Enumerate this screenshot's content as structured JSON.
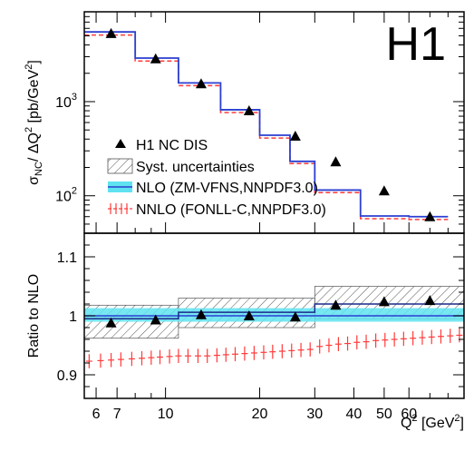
{
  "colors": {
    "nlo_line": "#2b3fd1",
    "nlo_band": "#5fe3f0",
    "nnlo": "#ff3b3b",
    "data": "#000000",
    "hatch": "#555555"
  },
  "brand_label": "H1",
  "chart_data": [
    {
      "panel": "top",
      "type": "line",
      "ylabel_parts": {
        "sigma": "σ",
        "nc": "NC",
        "rest": "/ ΔQ",
        "sq": "2",
        "unit": " [pb/GeV",
        "sq2": "2",
        "close": "]"
      },
      "yscale": "log",
      "xscale": "log",
      "xlim": [
        5.5,
        90
      ],
      "ylim": [
        40,
        9000
      ],
      "y_tick_labels": [
        {
          "value": 100,
          "base": "10",
          "exp": "2"
        },
        {
          "value": 1000,
          "base": "10",
          "exp": "3"
        }
      ],
      "bin_edges": [
        5.5,
        8,
        11,
        15,
        20,
        25,
        30,
        42,
        60,
        80,
        90
      ],
      "series": [
        {
          "name": "H1 NC DIS",
          "kind": "points",
          "x": [
            6.7,
            9.3,
            13.0,
            18.5,
            26.0,
            35.0,
            50.0,
            70.0
          ],
          "y": [
            5300,
            2850,
            1550,
            800,
            430,
            230,
            113,
            60
          ]
        },
        {
          "name": "NLO (ZM-VFNS,NNPDF3.0)",
          "kind": "step",
          "values": [
            5500,
            2900,
            1580,
            820,
            440,
            232,
            115,
            61,
            60
          ]
        },
        {
          "name": "NNLO (FONLL-C,NNPDF3.0)",
          "kind": "step",
          "values": [
            5100,
            2700,
            1480,
            765,
            410,
            220,
            108,
            57,
            56
          ]
        }
      ],
      "legend": [
        {
          "label": "H1 NC DIS",
          "marker": "triangle"
        },
        {
          "label": "Syst. uncertainties",
          "marker": "hatch"
        },
        {
          "label": "NLO (ZM-VFNS,NNPDF3.0)",
          "marker": "band"
        },
        {
          "label": "NNLO (FONLL-C,NNPDF3.0)",
          "marker": "nnlo"
        }
      ],
      "legend_position": "bottom-left"
    },
    {
      "panel": "bottom",
      "type": "line",
      "ylabel": "Ratio to NLO",
      "xlabel_parts": {
        "q": "Q",
        "sq": "2",
        "unit": " [GeV",
        "sq2": "2",
        "close": "]"
      },
      "xscale": "log",
      "xlim": [
        5.5,
        90
      ],
      "ylim": [
        0.86,
        1.14
      ],
      "y_tick_labels": [
        {
          "value": 0.9,
          "label": "0.9"
        },
        {
          "value": 1.0,
          "label": "1"
        },
        {
          "value": 1.1,
          "label": "1.1"
        }
      ],
      "x_tick_labels": [
        {
          "value": 6,
          "label": "6"
        },
        {
          "value": 7,
          "label": "7"
        },
        {
          "value": 10,
          "label": "10"
        },
        {
          "value": 20,
          "label": "20"
        },
        {
          "value": 30,
          "label": "30"
        },
        {
          "value": 40,
          "label": "40"
        },
        {
          "value": 50,
          "label": "50"
        },
        {
          "value": 60,
          "label": "60"
        }
      ],
      "bin_edges": [
        5.5,
        11,
        30,
        90
      ],
      "syst_band": [
        {
          "lo": 0.962,
          "hi": 1.018
        },
        {
          "lo": 0.98,
          "hi": 1.03
        },
        {
          "lo": 0.995,
          "hi": 1.05
        }
      ],
      "nlo_band": {
        "lo": 0.99,
        "hi": 1.013
      },
      "data_ratio": {
        "x": [
          6.7,
          9.3,
          13.0,
          18.5,
          26.0,
          35.0,
          50.0,
          70.0
        ],
        "y": [
          0.988,
          0.993,
          1.002,
          1.0,
          0.998,
          1.018,
          1.024,
          1.026
        ]
      },
      "model_ratio_edges": [
        5.5,
        11,
        30,
        90
      ],
      "model_ratio_values": [
        0.995,
        1.006,
        1.02
      ],
      "nnlo_ratio": {
        "x": [
          5.7,
          6.2,
          6.7,
          7.2,
          7.8,
          8.4,
          9.0,
          9.6,
          10.3,
          11.0,
          11.8,
          12.7,
          13.6,
          14.6,
          15.6,
          16.7,
          17.9,
          19.2,
          20.6,
          22.0,
          23.6,
          25.3,
          27.1,
          29.0,
          31.1,
          33.3,
          35.7,
          38.2,
          40.9,
          43.8,
          47.0,
          50.3,
          53.9,
          57.7,
          61.8,
          66.2,
          70.9,
          75.9,
          81.3,
          87.0
        ],
        "y": [
          0.923,
          0.924,
          0.925,
          0.926,
          0.927,
          0.928,
          0.929,
          0.93,
          0.931,
          0.932,
          0.932,
          0.932,
          0.932,
          0.933,
          0.934,
          0.935,
          0.936,
          0.937,
          0.938,
          0.939,
          0.94,
          0.941,
          0.942,
          0.943,
          0.948,
          0.95,
          0.952,
          0.953,
          0.955,
          0.956,
          0.958,
          0.959,
          0.96,
          0.961,
          0.962,
          0.963,
          0.964,
          0.965,
          0.966,
          0.967
        ],
        "err": 0.012
      }
    }
  ]
}
